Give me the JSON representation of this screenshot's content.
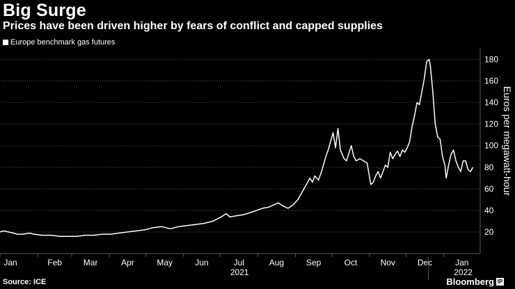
{
  "header": {
    "title": "Big Surge",
    "subtitle": "Prices have been driven higher by fears of conflict and capped supplies"
  },
  "legend": {
    "label": "Europe benchmark gas futures"
  },
  "footer": {
    "source": "Source: ICE",
    "brand": "Bloomberg",
    "brand_mark": "IP"
  },
  "colors": {
    "background": "#000000",
    "line": "#ffffff",
    "grid": "#5a5a5a"
  },
  "chart_data": {
    "type": "line",
    "title": "Big Surge",
    "subtitle": "Prices have been driven higher by fears of conflict and capped supplies",
    "ylabel": "Euros per megawatt-hour",
    "xlabel": "",
    "ylim": [
      0,
      190
    ],
    "yticks": [
      20,
      40,
      60,
      80,
      100,
      120,
      140,
      160,
      180
    ],
    "xlim": [
      "2021-01-01",
      "2022-01-31"
    ],
    "xticks": [
      {
        "date": "2021-01-01",
        "label": "Jan"
      },
      {
        "date": "2021-02-01",
        "label": "Feb"
      },
      {
        "date": "2021-03-01",
        "label": "Mar"
      },
      {
        "date": "2021-04-01",
        "label": "Apr"
      },
      {
        "date": "2021-05-01",
        "label": "May"
      },
      {
        "date": "2021-06-01",
        "label": "Jun"
      },
      {
        "date": "2021-07-01",
        "label": "Jul"
      },
      {
        "date": "2021-08-01",
        "label": "Aug"
      },
      {
        "date": "2021-09-01",
        "label": "Sep"
      },
      {
        "date": "2021-10-01",
        "label": "Oct"
      },
      {
        "date": "2021-11-01",
        "label": "Nov"
      },
      {
        "date": "2021-12-01",
        "label": "Dec"
      },
      {
        "date": "2022-01-01",
        "label": "Jan"
      }
    ],
    "year_labels": [
      {
        "date": "2021-07-01",
        "label": "2021"
      },
      {
        "date": "2022-01-01",
        "label": "2022"
      }
    ],
    "grid": "horizontal dotted",
    "legend_position": "top-left",
    "series": [
      {
        "name": "Europe benchmark gas futures",
        "points": [
          [
            "2021-01-01",
            20
          ],
          [
            "2021-01-04",
            21
          ],
          [
            "2021-01-08",
            20
          ],
          [
            "2021-01-12",
            19
          ],
          [
            "2021-01-15",
            18
          ],
          [
            "2021-01-20",
            18
          ],
          [
            "2021-01-25",
            19
          ],
          [
            "2021-01-29",
            18
          ],
          [
            "2021-02-05",
            17
          ],
          [
            "2021-02-12",
            17
          ],
          [
            "2021-02-19",
            16
          ],
          [
            "2021-02-26",
            16
          ],
          [
            "2021-03-05",
            16
          ],
          [
            "2021-03-12",
            17
          ],
          [
            "2021-03-19",
            17
          ],
          [
            "2021-03-26",
            18
          ],
          [
            "2021-04-02",
            18
          ],
          [
            "2021-04-09",
            19
          ],
          [
            "2021-04-16",
            20
          ],
          [
            "2021-04-23",
            21
          ],
          [
            "2021-04-30",
            22
          ],
          [
            "2021-05-07",
            24
          ],
          [
            "2021-05-14",
            25
          ],
          [
            "2021-05-21",
            23
          ],
          [
            "2021-05-28",
            25
          ],
          [
            "2021-06-04",
            26
          ],
          [
            "2021-06-11",
            27
          ],
          [
            "2021-06-18",
            28
          ],
          [
            "2021-06-25",
            30
          ],
          [
            "2021-07-02",
            34
          ],
          [
            "2021-07-06",
            37
          ],
          [
            "2021-07-09",
            34
          ],
          [
            "2021-07-14",
            35
          ],
          [
            "2021-07-20",
            36
          ],
          [
            "2021-07-26",
            38
          ],
          [
            "2021-07-31",
            40
          ],
          [
            "2021-08-05",
            42
          ],
          [
            "2021-08-10",
            43
          ],
          [
            "2021-08-14",
            45
          ],
          [
            "2021-08-18",
            47
          ],
          [
            "2021-08-22",
            44
          ],
          [
            "2021-08-26",
            42
          ],
          [
            "2021-08-30",
            45
          ],
          [
            "2021-09-03",
            50
          ],
          [
            "2021-09-07",
            58
          ],
          [
            "2021-09-10",
            64
          ],
          [
            "2021-09-13",
            70
          ],
          [
            "2021-09-15",
            66
          ],
          [
            "2021-09-17",
            72
          ],
          [
            "2021-09-20",
            68
          ],
          [
            "2021-09-23",
            78
          ],
          [
            "2021-09-26",
            90
          ],
          [
            "2021-09-28",
            96
          ],
          [
            "2021-09-30",
            104
          ],
          [
            "2021-10-02",
            112
          ],
          [
            "2021-10-04",
            98
          ],
          [
            "2021-10-06",
            116
          ],
          [
            "2021-10-08",
            96
          ],
          [
            "2021-10-11",
            88
          ],
          [
            "2021-10-13",
            86
          ],
          [
            "2021-10-15",
            93
          ],
          [
            "2021-10-17",
            100
          ],
          [
            "2021-10-19",
            90
          ],
          [
            "2021-10-21",
            86
          ],
          [
            "2021-10-24",
            88
          ],
          [
            "2021-10-27",
            86
          ],
          [
            "2021-10-30",
            84
          ],
          [
            "2021-11-02",
            64
          ],
          [
            "2021-11-04",
            66
          ],
          [
            "2021-11-06",
            72
          ],
          [
            "2021-11-08",
            76
          ],
          [
            "2021-11-10",
            70
          ],
          [
            "2021-11-12",
            76
          ],
          [
            "2021-11-14",
            82
          ],
          [
            "2021-11-16",
            80
          ],
          [
            "2021-11-18",
            94
          ],
          [
            "2021-11-20",
            88
          ],
          [
            "2021-11-22",
            92
          ],
          [
            "2021-11-24",
            95
          ],
          [
            "2021-11-26",
            90
          ],
          [
            "2021-11-28",
            96
          ],
          [
            "2021-11-30",
            94
          ],
          [
            "2021-12-02",
            98
          ],
          [
            "2021-12-04",
            104
          ],
          [
            "2021-12-06",
            118
          ],
          [
            "2021-12-08",
            128
          ],
          [
            "2021-12-10",
            140
          ],
          [
            "2021-12-12",
            138
          ],
          [
            "2021-12-14",
            150
          ],
          [
            "2021-12-16",
            162
          ],
          [
            "2021-12-18",
            178
          ],
          [
            "2021-12-20",
            180
          ],
          [
            "2021-12-21",
            174
          ],
          [
            "2021-12-23",
            150
          ],
          [
            "2021-12-25",
            120
          ],
          [
            "2021-12-27",
            108
          ],
          [
            "2021-12-29",
            106
          ],
          [
            "2021-12-31",
            90
          ],
          [
            "2022-01-02",
            82
          ],
          [
            "2022-01-03",
            70
          ],
          [
            "2022-01-05",
            82
          ],
          [
            "2022-01-07",
            92
          ],
          [
            "2022-01-09",
            96
          ],
          [
            "2022-01-11",
            86
          ],
          [
            "2022-01-13",
            80
          ],
          [
            "2022-01-15",
            76
          ],
          [
            "2022-01-17",
            86
          ],
          [
            "2022-01-19",
            86
          ],
          [
            "2022-01-21",
            78
          ],
          [
            "2022-01-23",
            76
          ],
          [
            "2022-01-25",
            80
          ]
        ]
      }
    ]
  }
}
